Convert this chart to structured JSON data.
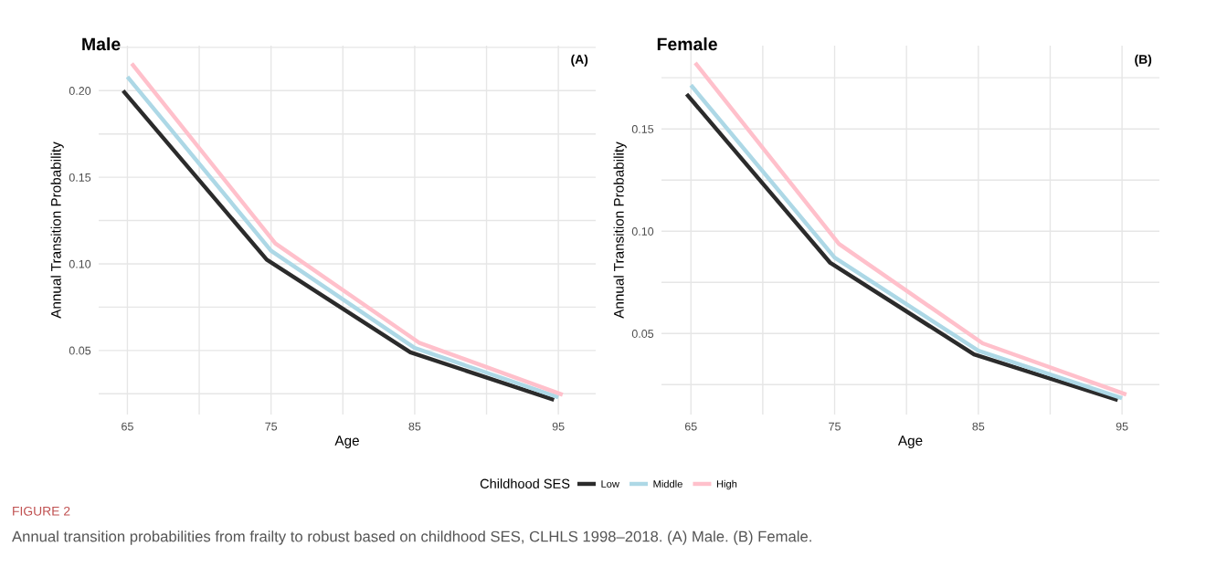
{
  "chart_data": [
    {
      "type": "line",
      "title": "Male",
      "xlabel": "Age",
      "ylabel": "Annual Transition Probability",
      "legend_title": "Childhood SES",
      "legend": "bottom",
      "grid": true,
      "line_style": "solid",
      "marker": "none",
      "annotations": [
        "(A)",
        "FIGURE 2",
        "Annual transition probabilities from frailty to robust based on childhood SES, CLHLS 1998–2018. (A) Male. (B) Female."
      ],
      "xlim": [
        63,
        97.6
      ],
      "xticks": [
        65,
        {
          "value": 70,
          "label": null
        },
        75,
        {
          "value": 80,
          "label": null
        },
        85,
        {
          "value": 90,
          "label": null
        },
        95
      ],
      "ylim": [
        0.013,
        0.226
      ],
      "yticks": [
        {
          "value": 0.025,
          "label": null
        },
        {
          "value": 0.05,
          "label": "0.05"
        },
        {
          "value": 0.075,
          "label": null
        },
        {
          "value": 0.1,
          "label": "0.10"
        },
        {
          "value": 0.125,
          "label": null
        },
        {
          "value": 0.15,
          "label": "0.15"
        },
        {
          "value": 0.175,
          "label": null
        },
        {
          "value": 0.2,
          "label": "0.20"
        },
        {
          "value": 0.225,
          "label": null
        }
      ],
      "series": [
        {
          "name": "Low",
          "color": "#2b2b2b",
          "x": [
            64.7,
            74.7,
            84.7,
            94.7
          ],
          "values": [
            0.2,
            0.1024,
            0.0489,
            0.0215
          ]
        },
        {
          "name": "Middle",
          "color": "#add8e6",
          "x": [
            65,
            75,
            85,
            95
          ],
          "values": [
            0.208,
            0.1076,
            0.0514,
            0.0229
          ]
        },
        {
          "name": "High",
          "color": "#ffc0cb",
          "x": [
            65.3,
            75.3,
            85.3,
            95.3
          ],
          "values": [
            0.2156,
            0.1118,
            0.0545,
            0.0244
          ]
        }
      ]
    },
    {
      "type": "line",
      "title": "Female",
      "xlabel": "Age",
      "ylabel": "Annual Transition Probability",
      "grid": true,
      "line_style": "solid",
      "marker": "none",
      "annotations": [
        "(B)"
      ],
      "xlim": [
        62.95,
        97.6
      ],
      "xticks": [
        65,
        {
          "value": 70,
          "label": null
        },
        75,
        {
          "value": 80,
          "label": null
        },
        85,
        {
          "value": 90,
          "label": null
        },
        95
      ],
      "ylim": [
        0.0104,
        0.1907
      ],
      "yticks": [
        {
          "value": 0.025,
          "label": null
        },
        {
          "value": 0.05,
          "label": "0.05"
        },
        {
          "value": 0.075,
          "label": null
        },
        {
          "value": 0.1,
          "label": "0.10"
        },
        {
          "value": 0.125,
          "label": null
        },
        {
          "value": 0.15,
          "label": "0.15"
        },
        {
          "value": 0.175,
          "label": null
        }
      ],
      "series": [
        {
          "name": "Low",
          "color": "#2b2b2b",
          "x": [
            64.7,
            74.7,
            84.7,
            94.7
          ],
          "values": [
            0.167,
            0.0845,
            0.0398,
            0.0175
          ]
        },
        {
          "name": "Middle",
          "color": "#add8e6",
          "x": [
            65,
            75,
            85,
            95
          ],
          "values": [
            0.1714,
            0.0871,
            0.0416,
            0.0184
          ]
        },
        {
          "name": "High",
          "color": "#ffc0cb",
          "x": [
            65.3,
            75.3,
            85.3,
            95.3
          ],
          "values": [
            0.1823,
            0.0938,
            0.0452,
            0.0202
          ]
        }
      ]
    }
  ]
}
